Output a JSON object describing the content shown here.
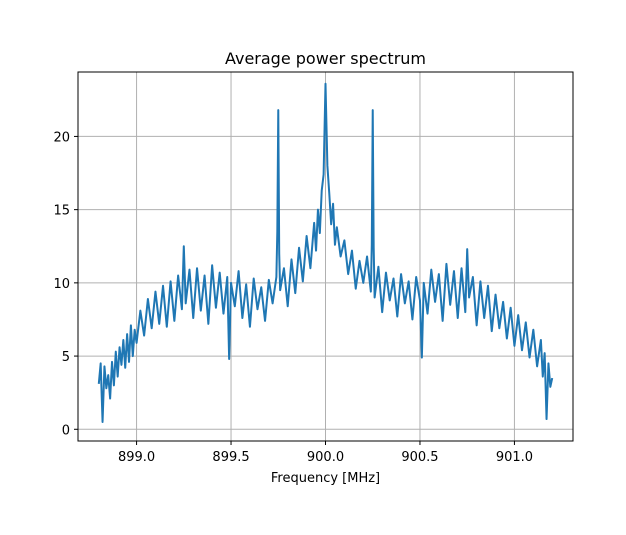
{
  "chart_data": {
    "type": "line",
    "title": "Average power spectrum",
    "xlabel": "Frequency [MHz]",
    "ylabel": "",
    "xlim": [
      898.69,
      901.31
    ],
    "ylim": [
      -0.8,
      24.4
    ],
    "xticks": [
      899.0,
      899.5,
      900.0,
      900.5,
      901.0
    ],
    "xtick_labels": [
      "899.0",
      "899.5",
      "900.0",
      "900.5",
      "901.0"
    ],
    "yticks": [
      0,
      5,
      10,
      15,
      20
    ],
    "ytick_labels": [
      "0",
      "5",
      "10",
      "15",
      "20"
    ],
    "grid": true,
    "legend": "none",
    "colors": {
      "line": "#1f77b4",
      "grid": "#b0b0b0",
      "axes": "#000000"
    },
    "series": [
      {
        "x": [
          898.8,
          898.81,
          898.82,
          898.83,
          898.84,
          898.85,
          898.86,
          898.87,
          898.88,
          898.89,
          898.9,
          898.91,
          898.92,
          898.93,
          898.94,
          898.95,
          898.96,
          898.97,
          898.98,
          898.99,
          899.0,
          899.02,
          899.04,
          899.06,
          899.08,
          899.1,
          899.12,
          899.14,
          899.16,
          899.18,
          899.2,
          899.22,
          899.24,
          899.25,
          899.26,
          899.28,
          899.3,
          899.32,
          899.34,
          899.36,
          899.38,
          899.4,
          899.42,
          899.44,
          899.46,
          899.48,
          899.49,
          899.5,
          899.52,
          899.54,
          899.56,
          899.58,
          899.6,
          899.62,
          899.64,
          899.66,
          899.68,
          899.7,
          899.72,
          899.74,
          899.745,
          899.75,
          899.755,
          899.76,
          899.78,
          899.8,
          899.82,
          899.84,
          899.86,
          899.88,
          899.9,
          899.92,
          899.94,
          899.95,
          899.96,
          899.97,
          899.98,
          899.99,
          900.0,
          900.01,
          900.02,
          900.03,
          900.04,
          900.05,
          900.06,
          900.08,
          900.1,
          900.12,
          900.14,
          900.16,
          900.18,
          900.2,
          900.22,
          900.24,
          900.245,
          900.25,
          900.255,
          900.26,
          900.28,
          900.3,
          900.32,
          900.34,
          900.36,
          900.38,
          900.4,
          900.42,
          900.44,
          900.46,
          900.48,
          900.5,
          900.51,
          900.52,
          900.54,
          900.56,
          900.58,
          900.6,
          900.62,
          900.64,
          900.66,
          900.68,
          900.7,
          900.72,
          900.74,
          900.75,
          900.76,
          900.78,
          900.8,
          900.82,
          900.84,
          900.86,
          900.88,
          900.9,
          900.92,
          900.94,
          900.96,
          900.98,
          901.0,
          901.02,
          901.04,
          901.06,
          901.08,
          901.1,
          901.12,
          901.14,
          901.15,
          901.16,
          901.17,
          901.18,
          901.19,
          901.2
        ],
        "y": [
          3.1,
          4.5,
          0.5,
          4.3,
          2.8,
          3.7,
          2.1,
          4.6,
          3.0,
          5.3,
          3.6,
          5.6,
          4.4,
          6.1,
          4.2,
          6.5,
          4.6,
          7.1,
          5.0,
          6.8,
          5.9,
          8.1,
          6.4,
          8.9,
          6.9,
          9.4,
          7.2,
          9.8,
          7.0,
          10.1,
          7.4,
          10.5,
          8.2,
          12.5,
          8.6,
          10.9,
          7.6,
          11.0,
          8.1,
          10.5,
          7.2,
          11.2,
          8.3,
          10.7,
          7.9,
          10.4,
          4.8,
          10.0,
          8.4,
          10.8,
          7.6,
          9.9,
          7.0,
          10.3,
          8.2,
          9.7,
          7.4,
          10.2,
          8.6,
          10.4,
          13.5,
          21.8,
          12.0,
          9.5,
          11.0,
          8.4,
          11.6,
          9.3,
          12.4,
          10.1,
          13.2,
          11.0,
          14.1,
          12.2,
          15.0,
          13.4,
          16.3,
          17.4,
          23.6,
          18.0,
          16.1,
          14.0,
          15.4,
          12.6,
          13.8,
          11.8,
          12.9,
          10.6,
          12.2,
          9.6,
          11.5,
          10.0,
          11.8,
          9.4,
          12.6,
          21.8,
          12.4,
          9.0,
          11.1,
          8.0,
          10.7,
          8.8,
          10.3,
          7.7,
          10.6,
          8.6,
          10.1,
          7.5,
          10.4,
          8.8,
          4.9,
          10.0,
          7.9,
          10.9,
          8.7,
          10.6,
          7.4,
          11.3,
          8.5,
          10.8,
          7.6,
          11.0,
          8.0,
          12.3,
          9.0,
          10.4,
          7.1,
          10.1,
          7.6,
          9.8,
          6.7,
          9.2,
          6.9,
          8.7,
          6.2,
          8.3,
          5.7,
          7.8,
          5.4,
          7.3,
          4.9,
          6.8,
          4.3,
          6.1,
          3.6,
          5.2,
          0.7,
          4.5,
          2.9,
          3.5
        ]
      }
    ]
  }
}
